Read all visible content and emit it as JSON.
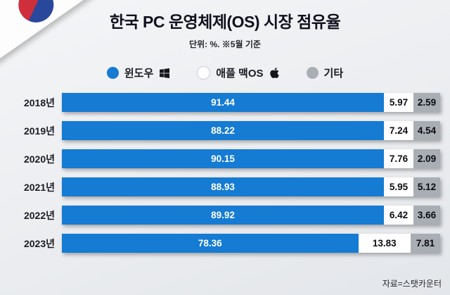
{
  "title": "한국 PC 운영체제(OS) 시장 점유율",
  "subtitle": "단위: %. ※5월 기준",
  "source": "자료=스탯카운터",
  "colors": {
    "windows_blue": "#157bd3",
    "macos_white": "#ffffff",
    "etc_gray": "#a9aeb4",
    "background": "#ebedf0"
  },
  "legend": [
    {
      "label": "윈도우",
      "icon": "windows-icon",
      "color": "#157bd3"
    },
    {
      "label": "애플 맥OS",
      "icon": "apple-icon",
      "color": "#ffffff"
    },
    {
      "label": "기타",
      "icon": "",
      "color": "#a9aeb4"
    }
  ],
  "chart_data": {
    "type": "bar",
    "orientation": "horizontal",
    "stacked": true,
    "title": "한국 PC 운영체제(OS) 시장 점유율",
    "unit": "%",
    "categories": [
      "2018년",
      "2019년",
      "2020년",
      "2021년",
      "2022년",
      "2023년"
    ],
    "series": [
      {
        "name": "윈도우",
        "values": [
          91.44,
          88.22,
          90.15,
          88.93,
          89.92,
          78.36
        ]
      },
      {
        "name": "애플 맥OS",
        "values": [
          5.97,
          7.24,
          7.76,
          5.95,
          6.42,
          13.83
        ]
      },
      {
        "name": "기타",
        "values": [
          2.59,
          4.54,
          2.09,
          5.12,
          3.66,
          7.81
        ]
      }
    ],
    "xlim": [
      0,
      100
    ],
    "legend_position": "top",
    "grid": false
  }
}
